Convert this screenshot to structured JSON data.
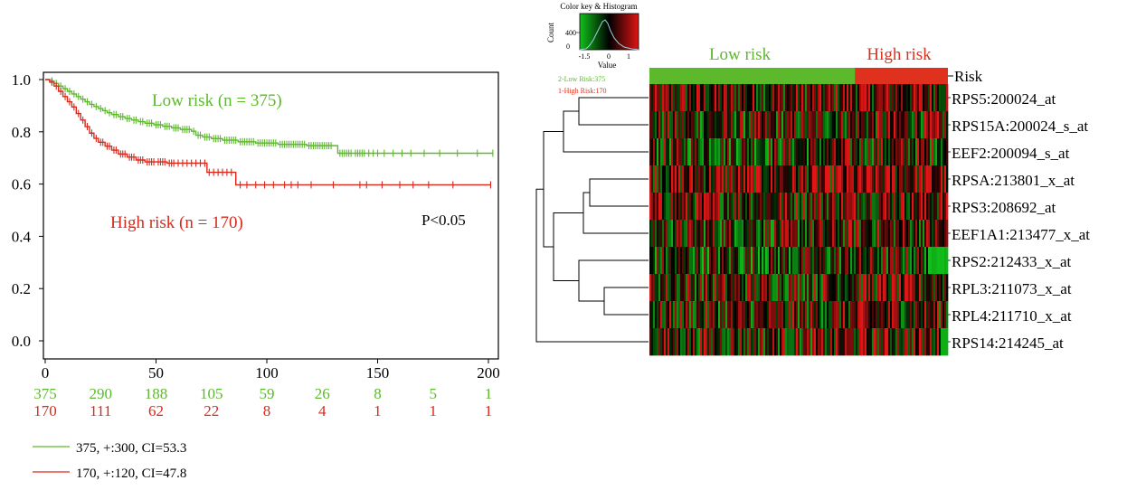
{
  "km": {
    "chart_data": {
      "type": "line",
      "title": "",
      "xlabel": "",
      "ylabel": "",
      "xlim": [
        0,
        205
      ],
      "ylim": [
        0,
        1.0
      ],
      "x_ticks": [
        "0",
        "50",
        "100",
        "150",
        "200"
      ],
      "y_ticks": [
        "0.0",
        "0.2",
        "0.4",
        "0.6",
        "0.8",
        "1.0"
      ],
      "series": [
        {
          "name": "Low risk (n = 375)",
          "color": "#5db92c",
          "steps": [
            [
              0,
              1.0
            ],
            [
              2,
              0.995
            ],
            [
              4,
              0.985
            ],
            [
              6,
              0.975
            ],
            [
              8,
              0.965
            ],
            [
              10,
              0.955
            ],
            [
              12,
              0.945
            ],
            [
              14,
              0.935
            ],
            [
              16,
              0.925
            ],
            [
              18,
              0.915
            ],
            [
              20,
              0.905
            ],
            [
              22,
              0.897
            ],
            [
              24,
              0.889
            ],
            [
              26,
              0.881
            ],
            [
              28,
              0.873
            ],
            [
              30,
              0.866
            ],
            [
              33,
              0.858
            ],
            [
              36,
              0.851
            ],
            [
              39,
              0.845
            ],
            [
              42,
              0.839
            ],
            [
              45,
              0.833
            ],
            [
              49,
              0.827
            ],
            [
              53,
              0.821
            ],
            [
              57,
              0.815
            ],
            [
              61,
              0.809
            ],
            [
              66,
              0.802
            ],
            [
              68,
              0.787
            ],
            [
              71,
              0.78
            ],
            [
              75,
              0.774
            ],
            [
              80,
              0.768
            ],
            [
              87,
              0.762
            ],
            [
              95,
              0.757
            ],
            [
              105,
              0.752
            ],
            [
              118,
              0.747
            ],
            [
              132,
              0.718
            ]
          ],
          "end_x": 202,
          "censor_x": [
            3,
            5,
            7,
            9,
            11,
            13,
            15,
            17,
            19,
            21,
            23,
            25,
            27,
            29,
            31,
            32,
            34,
            35,
            37,
            38,
            40,
            41,
            43,
            44,
            46,
            47,
            48,
            50,
            51,
            52,
            54,
            55,
            56,
            58,
            59,
            60,
            62,
            63,
            64,
            65,
            67,
            69,
            70,
            72,
            73,
            74,
            76,
            77,
            78,
            79,
            81,
            82,
            83,
            84,
            85,
            86,
            88,
            89,
            90,
            91,
            92,
            93,
            94,
            96,
            97,
            98,
            99,
            100,
            101,
            102,
            103,
            104,
            106,
            107,
            108,
            109,
            110,
            111,
            112,
            113,
            114,
            115,
            116,
            117,
            119,
            120,
            121,
            122,
            123,
            124,
            125,
            126,
            127,
            128,
            129,
            133,
            134,
            135,
            136,
            137,
            138,
            140,
            141,
            142,
            143,
            144,
            146,
            148,
            150,
            153,
            157,
            161,
            165,
            171,
            178,
            186,
            195,
            202
          ]
        },
        {
          "name": "High risk (n = 170)",
          "color": "#d9291c",
          "steps": [
            [
              0,
              1.0
            ],
            [
              2,
              0.99
            ],
            [
              4,
              0.975
            ],
            [
              6,
              0.955
            ],
            [
              8,
              0.935
            ],
            [
              10,
              0.915
            ],
            [
              12,
              0.895
            ],
            [
              14,
              0.87
            ],
            [
              16,
              0.845
            ],
            [
              18,
              0.82
            ],
            [
              20,
              0.795
            ],
            [
              22,
              0.775
            ],
            [
              24,
              0.76
            ],
            [
              27,
              0.745
            ],
            [
              30,
              0.73
            ],
            [
              33,
              0.715
            ],
            [
              37,
              0.703
            ],
            [
              41,
              0.692
            ],
            [
              45,
              0.685
            ],
            [
              55,
              0.68
            ],
            [
              73,
              0.645
            ],
            [
              86,
              0.597
            ]
          ],
          "end_x": 201,
          "censor_x": [
            3,
            5,
            7,
            9,
            11,
            13,
            15,
            17,
            19,
            21,
            23,
            25,
            26,
            28,
            29,
            31,
            32,
            34,
            35,
            36,
            38,
            39,
            40,
            42,
            43,
            44,
            46,
            47,
            48,
            49,
            51,
            52,
            53,
            54,
            56,
            57,
            58,
            60,
            62,
            64,
            66,
            68,
            70,
            72,
            74,
            76,
            78,
            80,
            82,
            84,
            88,
            91,
            95,
            99,
            103,
            108,
            111,
            114,
            120,
            130,
            142,
            145,
            152,
            160,
            166,
            173,
            184,
            201
          ]
        }
      ],
      "annotations": {
        "low_label": "Low risk (n = 375)",
        "high_label": "High risk (n = 170)",
        "pvalue": "P<0.05"
      },
      "at_risk": {
        "low": [
          "375",
          "290",
          "188",
          "105",
          "59",
          "26",
          "8",
          "5",
          "1"
        ],
        "high": [
          "170",
          "111",
          "62",
          "22",
          "8",
          "4",
          "1",
          "1",
          "1"
        ]
      },
      "legend": [
        "375, +:300, CI=53.3",
        "170, +:120, CI=47.8"
      ]
    }
  },
  "heatmap": {
    "chart_data": {
      "type": "heatmap",
      "rows": [
        "RPS5:200024_at",
        "RPS15A:200024_s_at",
        "EEF2:200094_s_at",
        "RPSA:213801_x_at",
        "RPS3:208692_at",
        "EEF1A1:213477_x_at",
        "RPS2:212433_x_at",
        "RPL3:211073_x_at",
        "RPL4:211710_x_at",
        "RPS14:214245_at"
      ],
      "groups": [
        {
          "label": "Low risk",
          "count": 375,
          "color": "#5db92c"
        },
        {
          "label": "High risk",
          "count": 170,
          "color": "#e0301e"
        }
      ],
      "risk_label": "Risk",
      "legend_lines": [
        "2-Low Risk:375",
        "1-High Risk:170"
      ],
      "color_key": {
        "title": "Color key & Histogram",
        "count_label": "Count",
        "count_tick": "400",
        "count_zero": "0",
        "value_label": "Value",
        "ticks": [
          "-1.5",
          "0",
          "1"
        ],
        "low_color": "#11c11a",
        "mid_color": "#000000",
        "high_color": "#e11515"
      }
    }
  }
}
